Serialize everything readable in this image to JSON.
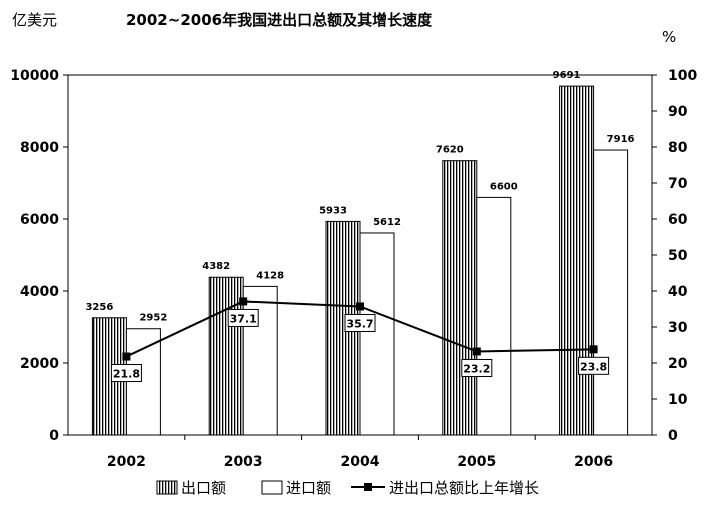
{
  "chart_data": {
    "type": "bar",
    "title": "2002~2006年我国进出口总额及其增长速度",
    "ylabel": "亿美元",
    "y2label": "%",
    "categories": [
      "2002",
      "2003",
      "2004",
      "2005",
      "2006"
    ],
    "ylim": [
      0,
      10000
    ],
    "y2lim": [
      0,
      100
    ],
    "yticks": [
      "0",
      "2000",
      "4000",
      "6000",
      "8000",
      "10000"
    ],
    "y2ticks": [
      "0",
      "10",
      "20",
      "30",
      "40",
      "50",
      "60",
      "70",
      "80",
      "90",
      "100"
    ],
    "grid": false,
    "legend_position": "bottom",
    "series": [
      {
        "name": "出口额",
        "type": "bar",
        "axis": "left",
        "pattern": "vertical-hatch",
        "values": [
          3256,
          4382,
          5933,
          7620,
          9691
        ],
        "labels": [
          "3256",
          "4382",
          "5933",
          "7620",
          "9691"
        ]
      },
      {
        "name": "进口额",
        "type": "bar",
        "axis": "left",
        "pattern": "solid-white",
        "values": [
          2952,
          4128,
          5612,
          6600,
          7916
        ],
        "labels": [
          "2952",
          "4128",
          "5612",
          "6600",
          "7916"
        ]
      },
      {
        "name": "进出口总额比上年增长",
        "type": "line",
        "axis": "right",
        "marker": "square",
        "values": [
          21.8,
          37.1,
          35.7,
          23.2,
          23.8
        ],
        "labels": [
          "21.8",
          "37.1",
          "35.7",
          "23.2",
          "23.8"
        ]
      }
    ]
  },
  "colors": {
    "ink": "#000000",
    "background": "#ffffff"
  }
}
